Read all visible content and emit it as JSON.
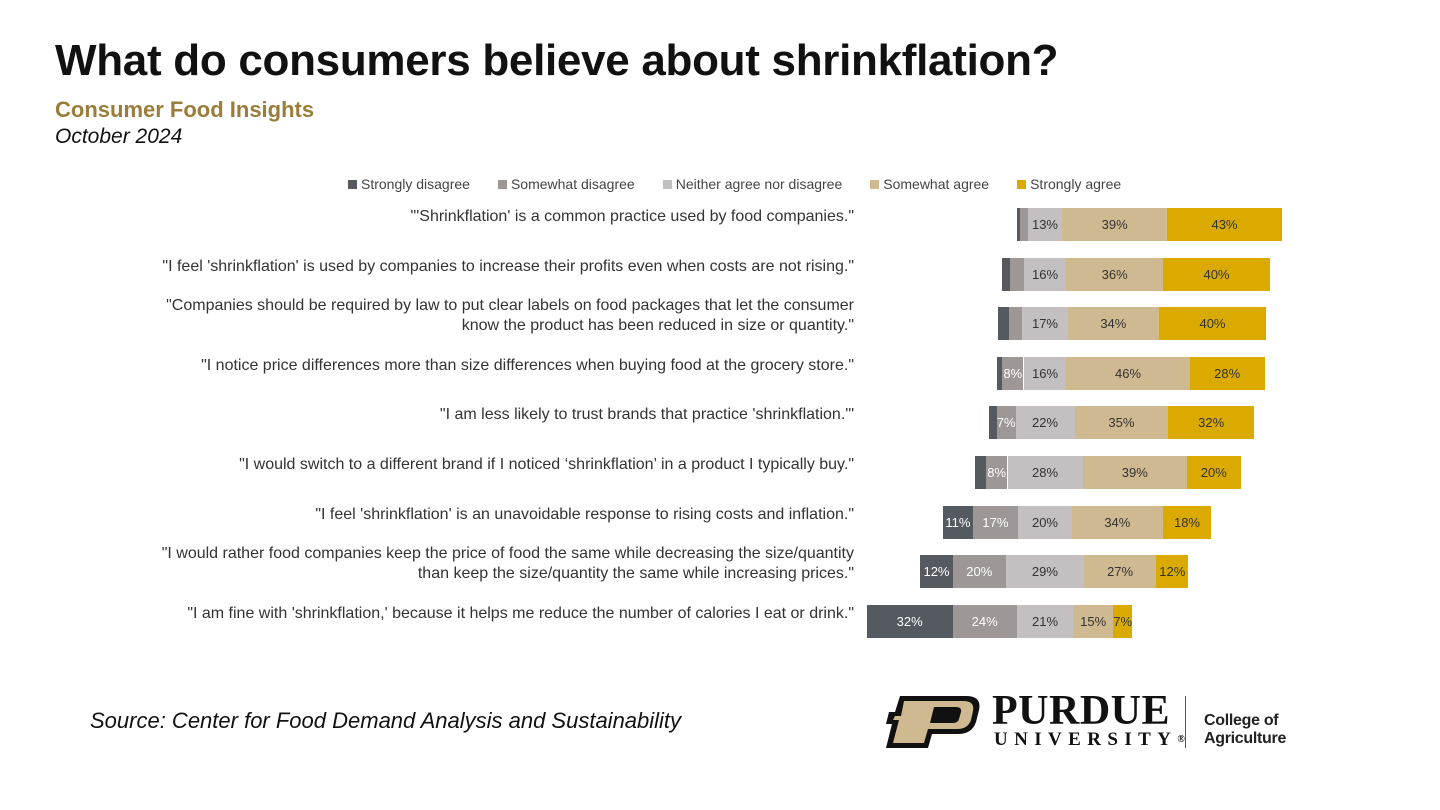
{
  "title": "What do consumers believe about shrinkflation?",
  "subtitle": "Consumer Food Insights",
  "date": "October 2024",
  "source": "Source:  Center for Food Demand Analysis and Sustainability",
  "logo": {
    "name": "PURDUE",
    "university": "UNIVERSITY",
    "registered": "®",
    "college": "College of Agriculture"
  },
  "colors": {
    "strongly_disagree": "#555960",
    "somewhat_disagree": "#9d9795",
    "neither": "#c4bfc0",
    "somewhat_agree": "#cfb991",
    "strongly_agree": "#daaa00"
  },
  "chart_data": {
    "type": "bar",
    "orientation": "horizontal",
    "stacked": "diverging",
    "legend_position": "top",
    "categories": [
      "\"'Shrinkflation' is a common practice used by food companies.\"",
      "\"I feel 'shrinkflation' is used by companies to increase their profits even when costs are not rising.\"",
      "\"Companies should be required by law to put clear labels on food packages that let the consumer know the product has been reduced in size or quantity.\"",
      "\"I notice price differences more than size differences when buying food at the grocery store.\"",
      "\"I am less likely to trust brands that practice 'shrinkflation.'\"",
      "\"I would switch to a different brand if I noticed ‘shrinkflation’ in a product I typically buy.\"",
      "\"I feel 'shrinkflation' is an unavoidable response to rising costs and inflation.\"",
      "\"I would rather food companies keep the price of food the same while decreasing the size/quantity than keep the size/quantity the same while increasing prices.\"",
      "\"I am fine with 'shrinkflation,' because it helps me reduce the number of calories I eat or drink.\""
    ],
    "category_lines": [
      [
        "\"'Shrinkflation' is a common practice used by food companies.\""
      ],
      [
        "\"I feel 'shrinkflation' is used by companies to increase their profits even when costs are not rising.\""
      ],
      [
        "\"Companies should be required by law to put clear labels on food packages that let the consumer",
        "know the product has been reduced in size or quantity.\""
      ],
      [
        "\"I notice price differences more than size differences when buying food at the grocery store.\""
      ],
      [
        "\"I am less likely to trust brands that practice 'shrinkflation.'\""
      ],
      [
        "\"I would switch to a different brand if I noticed ‘shrinkflation’ in a product I typically buy.\""
      ],
      [
        "\"I feel 'shrinkflation' is an unavoidable response to rising costs and inflation.\""
      ],
      [
        "\"I would rather food companies keep the price of food the same while decreasing the size/quantity",
        "than keep the size/quantity the same while increasing prices.\""
      ],
      [
        "\"I am fine with 'shrinkflation,' because it helps me reduce the number of calories I eat or drink.\""
      ]
    ],
    "series": [
      {
        "name": "Strongly disagree",
        "key": "strongly_disagree",
        "values": [
          1,
          3,
          4,
          2,
          3,
          4,
          11,
          12,
          32
        ],
        "labels": [
          "",
          "",
          "",
          "",
          "",
          "",
          "11%",
          "12%",
          "32%"
        ]
      },
      {
        "name": "Somewhat disagree",
        "key": "somewhat_disagree",
        "values": [
          3,
          5,
          5,
          8,
          7,
          8,
          17,
          20,
          24
        ],
        "labels": [
          "",
          "",
          "",
          "8%",
          "7%",
          "8%",
          "17%",
          "20%",
          "24%"
        ]
      },
      {
        "name": "Neither agree nor disagree",
        "key": "neither",
        "values": [
          13,
          16,
          17,
          16,
          22,
          28,
          20,
          29,
          21
        ],
        "labels": [
          "13%",
          "16%",
          "17%",
          "16%",
          "22%",
          "28%",
          "20%",
          "29%",
          "21%"
        ]
      },
      {
        "name": "Somewhat agree",
        "key": "somewhat_agree",
        "values": [
          39,
          36,
          34,
          46,
          35,
          39,
          34,
          27,
          15
        ],
        "labels": [
          "39%",
          "36%",
          "34%",
          "46%",
          "35%",
          "39%",
          "34%",
          "27%",
          "15%"
        ]
      },
      {
        "name": "Strongly agree",
        "key": "strongly_agree",
        "values": [
          43,
          40,
          40,
          28,
          32,
          20,
          18,
          12,
          7
        ],
        "labels": [
          "43%",
          "40%",
          "40%",
          "28%",
          "32%",
          "20%",
          "18%",
          "12%",
          "7%"
        ]
      }
    ],
    "label_colors": {
      "strongly_disagree": "#ffffff",
      "somewhat_disagree": "#ffffff",
      "neither": "#333333",
      "somewhat_agree": "#333333",
      "strongly_agree": "#333333"
    }
  }
}
